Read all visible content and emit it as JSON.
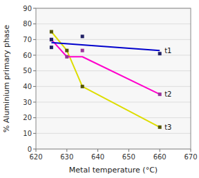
{
  "chart_data": {
    "type": "line",
    "xlabel": "Metal temperature (°C)",
    "ylabel": "% Aluminium primary phase",
    "xlim": [
      620,
      670
    ],
    "xticks": [
      620,
      630,
      640,
      650,
      660,
      670
    ],
    "ylim": [
      0,
      90
    ],
    "yticks": [
      0,
      10,
      20,
      30,
      40,
      50,
      60,
      70,
      80,
      90
    ],
    "grid": "y",
    "series": [
      {
        "name": "t3",
        "type": "line",
        "color": "#DDDD00",
        "x": [
          625,
          630,
          635,
          660
        ],
        "values": [
          75,
          63,
          40,
          14
        ]
      },
      {
        "type": "scatter",
        "color": "#555500",
        "marker": "square",
        "x": [
          625,
          630,
          635,
          660
        ],
        "values": [
          75,
          63,
          40,
          14
        ]
      },
      {
        "name": "t2",
        "type": "line",
        "color": "#FF00CC",
        "x": [
          625,
          630,
          635,
          660
        ],
        "values": [
          70,
          59,
          59,
          35
        ]
      },
      {
        "type": "scatter",
        "color": "#993399",
        "marker": "square",
        "x": [
          625,
          630,
          635,
          660
        ],
        "values": [
          70,
          59,
          63,
          35
        ]
      },
      {
        "name": "t1",
        "type": "line",
        "color": "#0000CC",
        "x": [
          625,
          660
        ],
        "values": [
          68,
          63
        ]
      },
      {
        "type": "scatter",
        "color": "#222266",
        "marker": "square",
        "x": [
          625,
          625,
          635,
          660
        ],
        "values": [
          65,
          70,
          72,
          61
        ]
      }
    ]
  }
}
